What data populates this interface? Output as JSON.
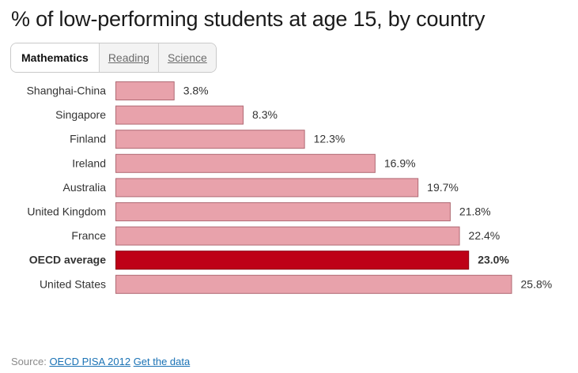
{
  "title": "% of low-performing students at age 15, by country",
  "tabs": [
    {
      "label": "Mathematics",
      "active": true
    },
    {
      "label": "Reading",
      "active": false
    },
    {
      "label": "Science",
      "active": false
    }
  ],
  "chart_data": {
    "type": "bar",
    "orientation": "horizontal",
    "categories": [
      "Shanghai-China",
      "Singapore",
      "Finland",
      "Ireland",
      "Australia",
      "United Kingdom",
      "France",
      "OECD average",
      "United States"
    ],
    "values": [
      3.8,
      8.3,
      12.3,
      16.9,
      19.7,
      21.8,
      22.4,
      23.0,
      25.8
    ],
    "value_labels": [
      "3.8%",
      "8.3%",
      "12.3%",
      "16.9%",
      "19.7%",
      "21.8%",
      "22.4%",
      "23.0%",
      "25.8%"
    ],
    "highlight": "OECD average",
    "unit": "%",
    "colors": {
      "bar": "#e8a2ab",
      "bar_stroke": "#b06a74",
      "highlight": "#be0017",
      "highlight_stroke": "#8a0012"
    },
    "grid": false,
    "legend": "none"
  },
  "source": {
    "prefix": "Source:",
    "link": "OECD PISA 2012",
    "data_link": "Get the data"
  }
}
